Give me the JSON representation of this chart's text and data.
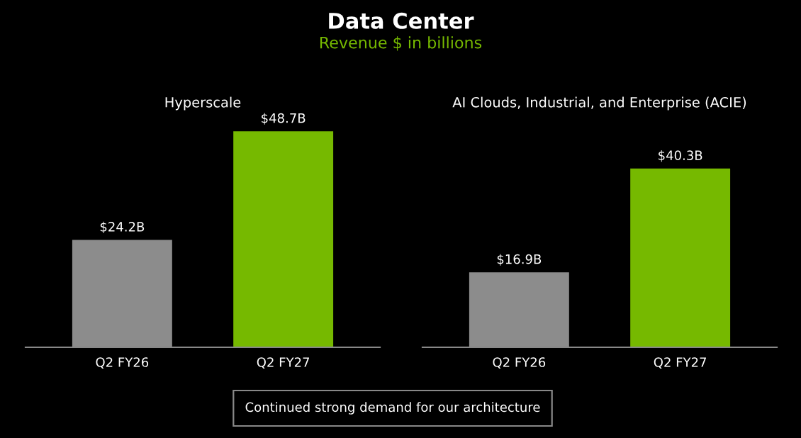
{
  "chart_data": [
    {
      "type": "other",
      "title": "Data Center",
      "subtitle": "Revenue $ in billions"
    },
    {
      "type": "bar",
      "title": "Hyperscale",
      "categories": [
        "Q2 FY26",
        "Q2 FY27"
      ],
      "values": [
        24.2,
        48.7
      ],
      "colors": [
        "#8c8c8c",
        "#76b900"
      ],
      "value_labels": [
        "$24.2B",
        "$48.7B"
      ],
      "grid": false,
      "legend": false
    },
    {
      "type": "bar",
      "title": "AI Clouds, Industrial, and Enterprise (ACIE)",
      "categories": [
        "Q2 FY26",
        "Q2 FY27"
      ],
      "values": [
        16.9,
        40.3
      ],
      "colors": [
        "#8c8c8c",
        "#76b900"
      ],
      "value_labels": [
        "$16.9B",
        "$40.3B"
      ],
      "grid": false,
      "legend": false
    },
    {
      "type": "other",
      "annotations": [
        "Continued strong demand for our architecture"
      ]
    }
  ]
}
